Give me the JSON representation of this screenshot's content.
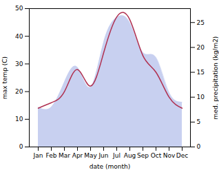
{
  "chart_data": {
    "type": "line",
    "xlabel": "date (month)",
    "ylabel": "max temp (C)",
    "y2label": "med. precipitation (kg/m2)",
    "categories": [
      "Jan",
      "Feb",
      "Mar",
      "Apr",
      "May",
      "Jun",
      "Jul",
      "Aug",
      "Sep",
      "Oct",
      "Nov",
      "Dec"
    ],
    "series": [
      {
        "type": "area",
        "axis": "y2",
        "color": "#c8d0f0",
        "values": [
          8,
          8,
          13,
          16,
          12,
          21,
          26,
          25,
          19,
          18,
          11,
          9
        ]
      },
      {
        "type": "line",
        "color": "#b03050",
        "values": [
          14,
          16,
          20,
          28,
          22,
          34,
          47,
          46,
          33,
          27,
          18,
          14
        ]
      }
    ],
    "ylim": [
      0,
      50
    ],
    "yticks": [
      0,
      10,
      20,
      30,
      40,
      50
    ],
    "y2lim": [
      0,
      27.8
    ],
    "y2ticks": [
      0,
      5,
      10,
      15,
      20,
      25
    ],
    "grid": false
  }
}
